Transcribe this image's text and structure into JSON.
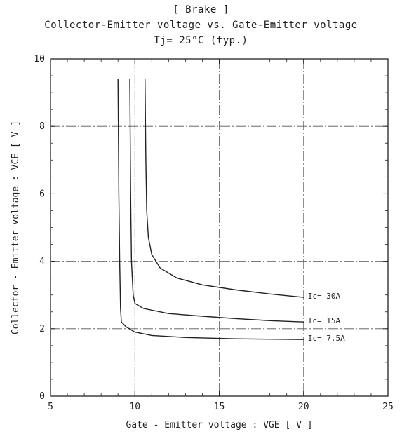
{
  "chart_data": {
    "type": "line",
    "title": "[ Brake ]",
    "subtitle": "Collector-Emitter voltage vs. Gate-Emitter voltage",
    "condition": "Tj= 25°C (typ.)",
    "xlabel": "Gate - Emitter voltage : VGE [ V ]",
    "ylabel": "Collector - Emitter voltage : VCE [ V ]",
    "xlim": [
      5,
      25
    ],
    "ylim": [
      0,
      10
    ],
    "xticks": [
      "5",
      "10",
      "15",
      "20",
      "25"
    ],
    "yticks": [
      "0",
      "2",
      "4",
      "6",
      "8",
      "10"
    ],
    "grid": true,
    "series": [
      {
        "name": "Ic= 30A",
        "points": [
          [
            10.6,
            9.4
          ],
          [
            10.65,
            7.0
          ],
          [
            10.7,
            5.5
          ],
          [
            10.8,
            4.7
          ],
          [
            11.0,
            4.2
          ],
          [
            11.5,
            3.8
          ],
          [
            12.5,
            3.5
          ],
          [
            14.0,
            3.3
          ],
          [
            16.0,
            3.15
          ],
          [
            18.0,
            3.03
          ],
          [
            20.0,
            2.93
          ]
        ]
      },
      {
        "name": "Ic= 15A",
        "points": [
          [
            9.7,
            9.4
          ],
          [
            9.75,
            6.0
          ],
          [
            9.8,
            4.0
          ],
          [
            9.9,
            3.0
          ],
          [
            10.0,
            2.75
          ],
          [
            10.5,
            2.6
          ],
          [
            12.0,
            2.45
          ],
          [
            14.0,
            2.37
          ],
          [
            16.0,
            2.3
          ],
          [
            18.0,
            2.24
          ],
          [
            20.0,
            2.2
          ]
        ]
      },
      {
        "name": "Ic= 7.5A",
        "points": [
          [
            9.0,
            9.4
          ],
          [
            9.05,
            6.0
          ],
          [
            9.1,
            4.0
          ],
          [
            9.15,
            2.6
          ],
          [
            9.2,
            2.2
          ],
          [
            9.5,
            2.05
          ],
          [
            10.0,
            1.9
          ],
          [
            11.0,
            1.8
          ],
          [
            13.0,
            1.74
          ],
          [
            16.0,
            1.7
          ],
          [
            20.0,
            1.68
          ]
        ]
      }
    ]
  }
}
